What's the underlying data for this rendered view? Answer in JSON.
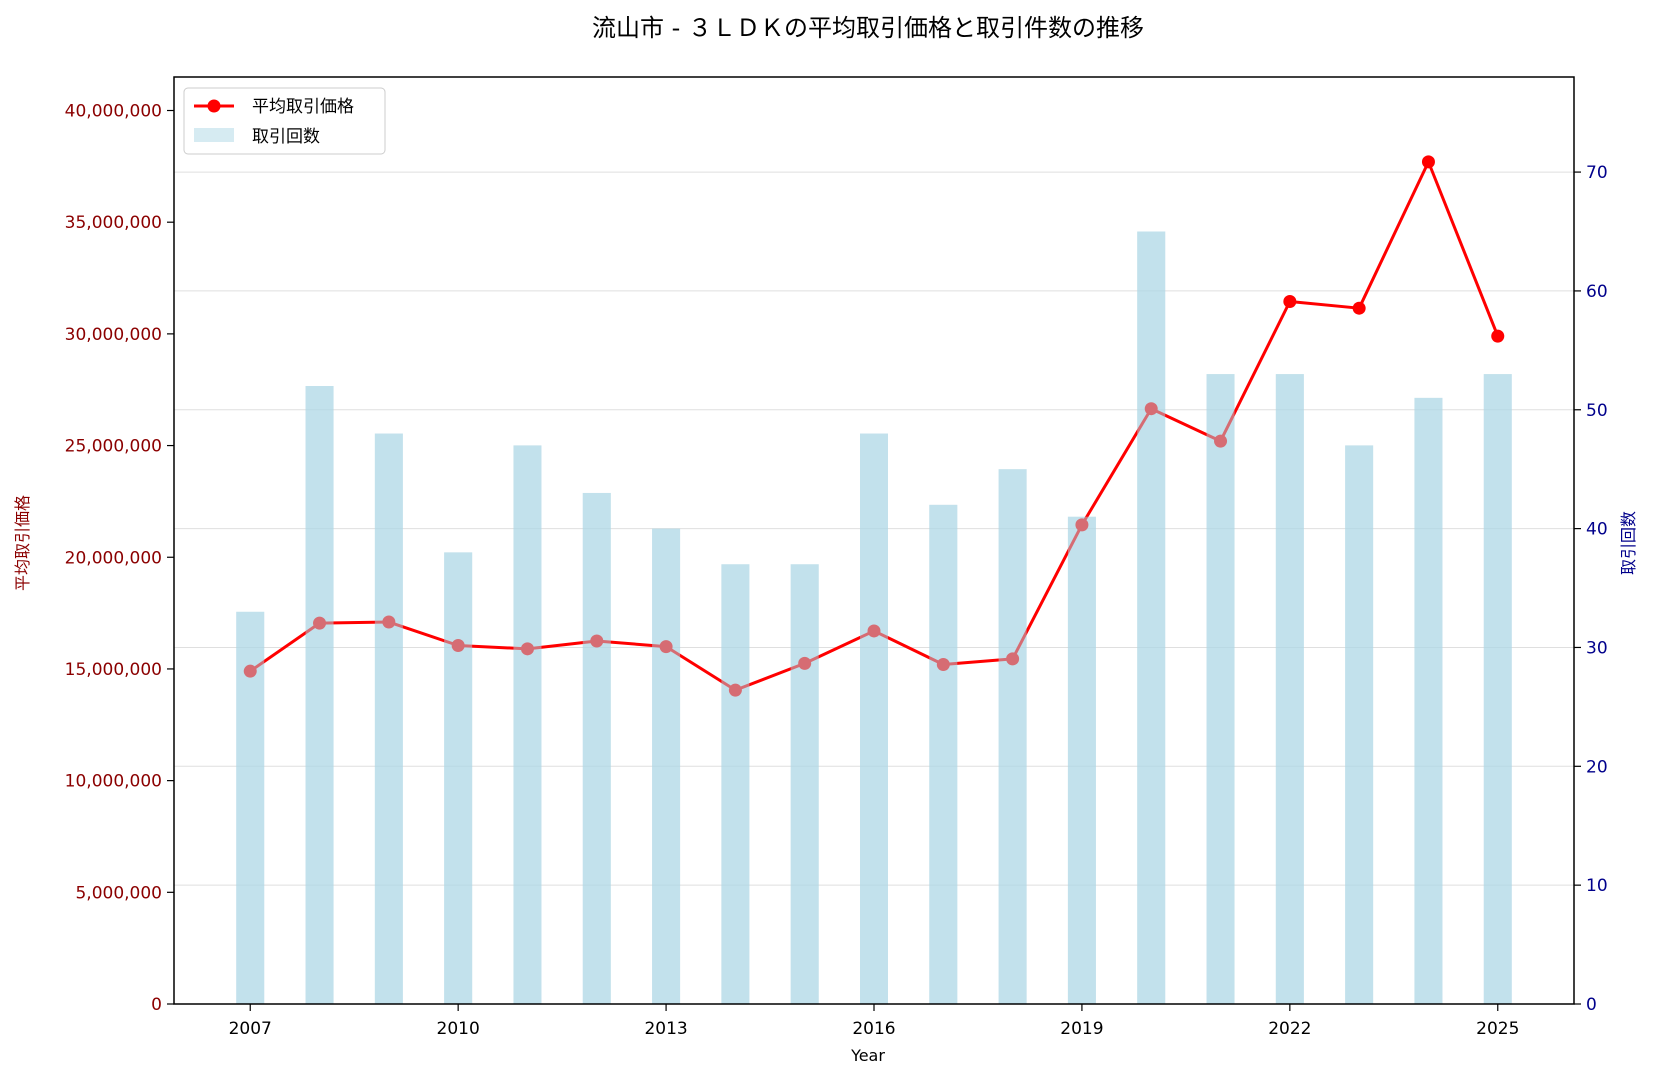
{
  "chart_data": {
    "type": "bar+line",
    "title": "流山市 - ３ＬＤＫの平均取引価格と取引件数の推移",
    "xlabel": "Year",
    "ylabel_left": "平均取引価格",
    "ylabel_right": "取引回数",
    "years": [
      2007,
      2008,
      2009,
      2010,
      2011,
      2012,
      2013,
      2014,
      2015,
      2016,
      2017,
      2018,
      2019,
      2020,
      2021,
      2022,
      2023,
      2024,
      2025
    ],
    "x_ticks": [
      "2007",
      "2010",
      "2013",
      "2016",
      "2019",
      "2022",
      "2025"
    ],
    "series": [
      {
        "name": "平均取引価格",
        "kind": "line",
        "axis": "left",
        "color": "#ff0000",
        "values": [
          14900000,
          17050000,
          17100000,
          16050000,
          15900000,
          16250000,
          16000000,
          14050000,
          15250000,
          16700000,
          15200000,
          15450000,
          21450000,
          26650000,
          25200000,
          31450000,
          31150000,
          37700000,
          29900000
        ]
      },
      {
        "name": "取引回数",
        "kind": "bar",
        "axis": "right",
        "color": "#add8e6",
        "values": [
          33,
          52,
          48,
          38,
          47,
          43,
          40,
          37,
          37,
          48,
          42,
          45,
          41,
          65,
          53,
          53,
          47,
          51,
          53
        ]
      }
    ],
    "y_left": {
      "ylim": [
        0,
        41500000
      ],
      "ticks": [
        0,
        5000000,
        10000000,
        15000000,
        20000000,
        25000000,
        30000000,
        35000000,
        40000000
      ],
      "tick_labels": [
        "0",
        "5,000,000",
        "10,000,000",
        "15,000,000",
        "20,000,000",
        "25,000,000",
        "30,000,000",
        "35,000,000",
        "40,000,000"
      ],
      "color": "#8b0000"
    },
    "y_right": {
      "ylim": [
        0,
        78
      ],
      "ticks": [
        0,
        10,
        20,
        30,
        40,
        50,
        60,
        70
      ],
      "tick_labels": [
        "0",
        "10",
        "20",
        "30",
        "40",
        "50",
        "60",
        "70"
      ],
      "color": "#00008b"
    },
    "xlim": [
      2005.9,
      2026.1
    ],
    "grid": "horizontal, right axis",
    "legend_position": "top-left"
  }
}
